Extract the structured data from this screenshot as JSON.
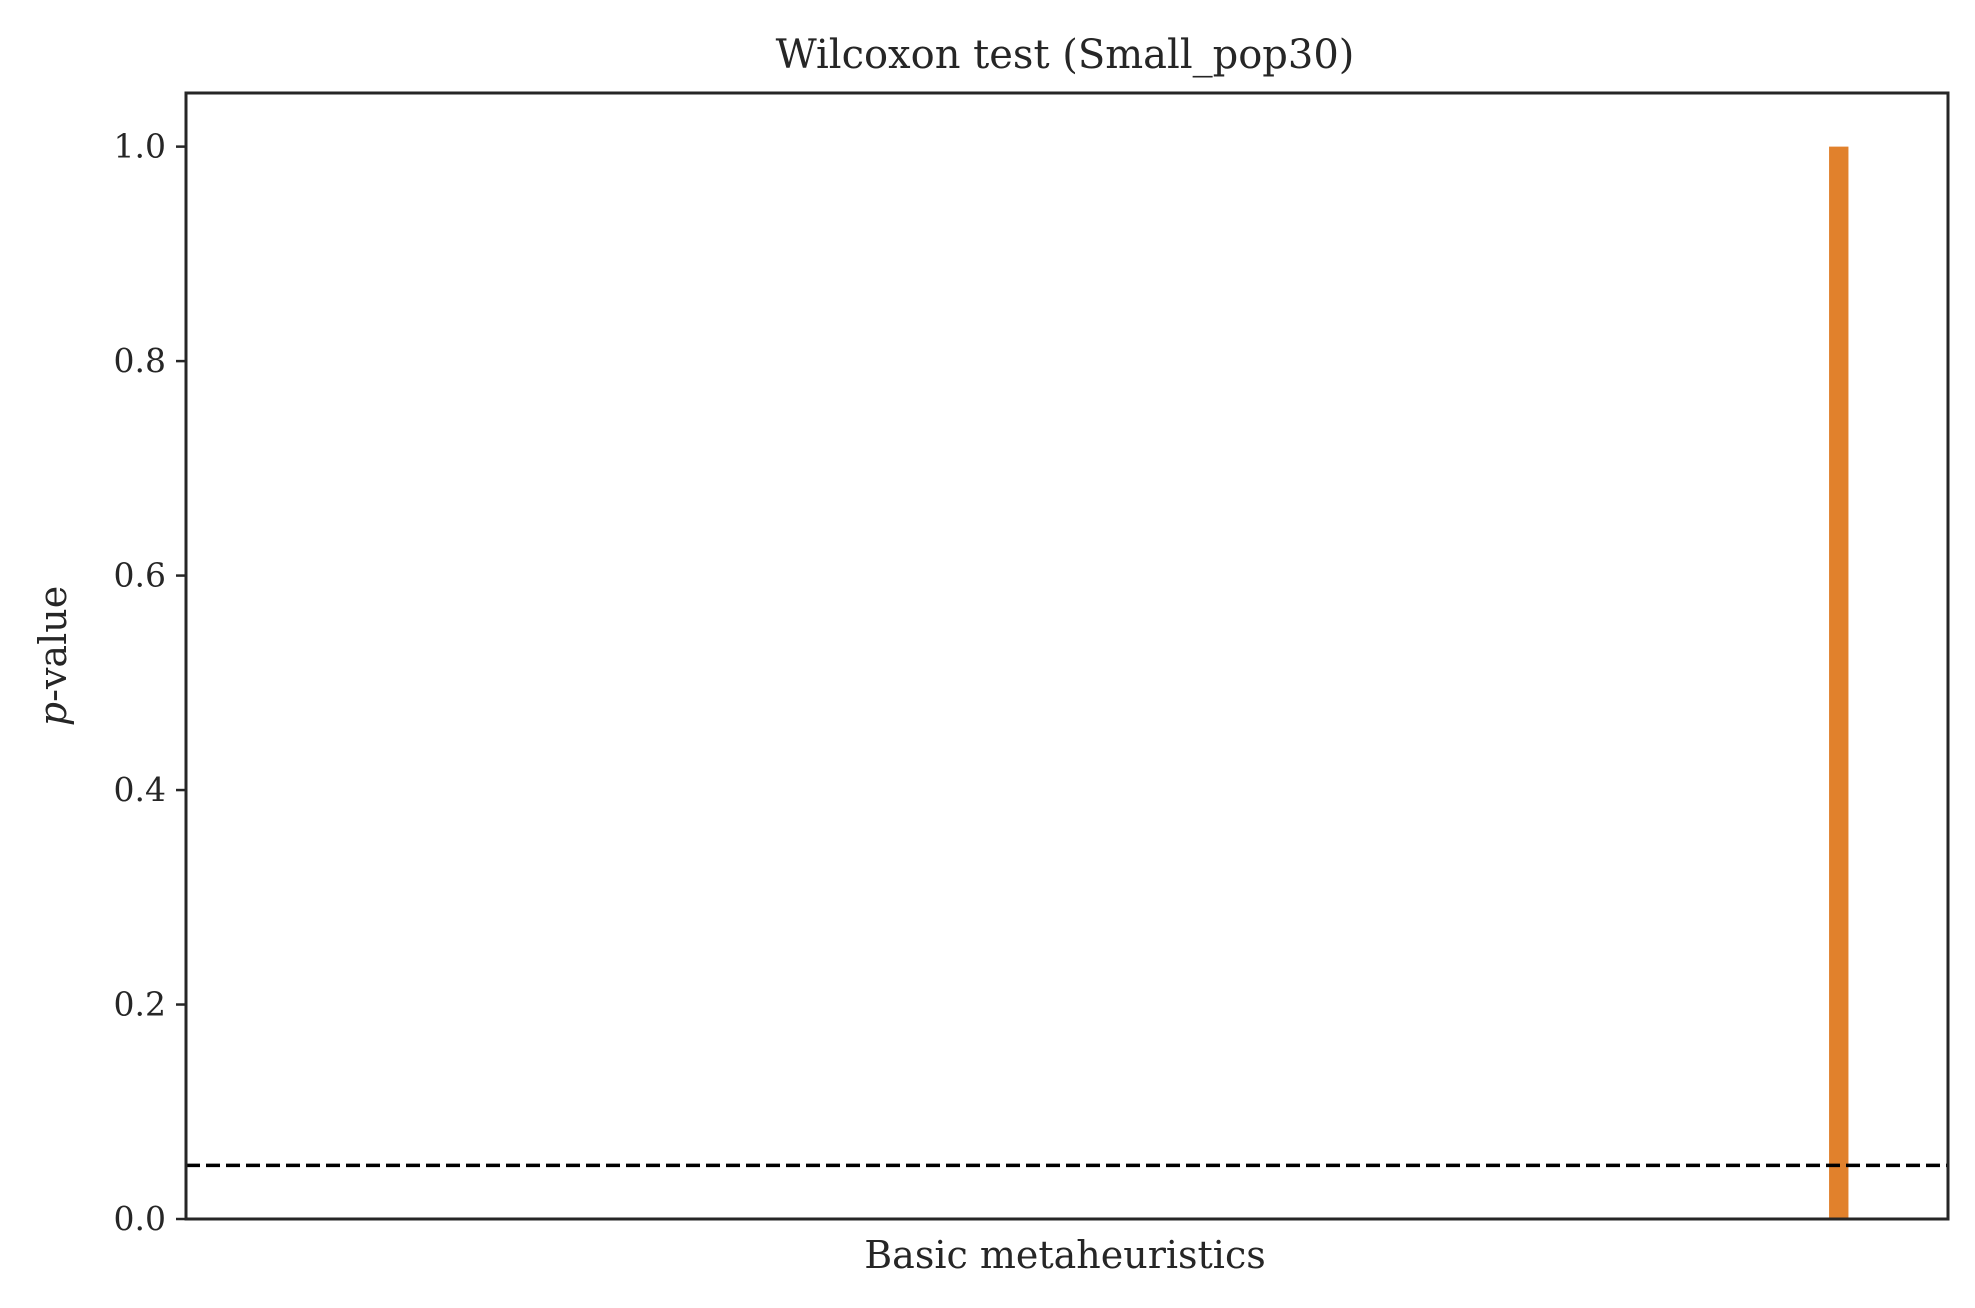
{
  "chart_data": {
    "type": "bar",
    "title": "Wilcoxon test (Small_pop30)",
    "xlabel": "Basic metaheuristics",
    "ylabel": "p-value",
    "ylabel_italic_part": "p",
    "ylabel_rest": "-value",
    "ylim": [
      0,
      1.05
    ],
    "xlim": [
      0,
      1
    ],
    "yticks": [
      0.0,
      0.2,
      0.4,
      0.6,
      0.8,
      1.0
    ],
    "ytick_labels": [
      "0.0",
      "0.2",
      "0.4",
      "0.6",
      "0.8",
      "1.0"
    ],
    "bars": [
      {
        "x": 0.938,
        "width": 0.011,
        "value": 1.0,
        "color": "#e1812c"
      }
    ],
    "reference_line": {
      "y": 0.05,
      "style": "dashed",
      "color": "#000000"
    },
    "grid": false,
    "legend": "none"
  }
}
